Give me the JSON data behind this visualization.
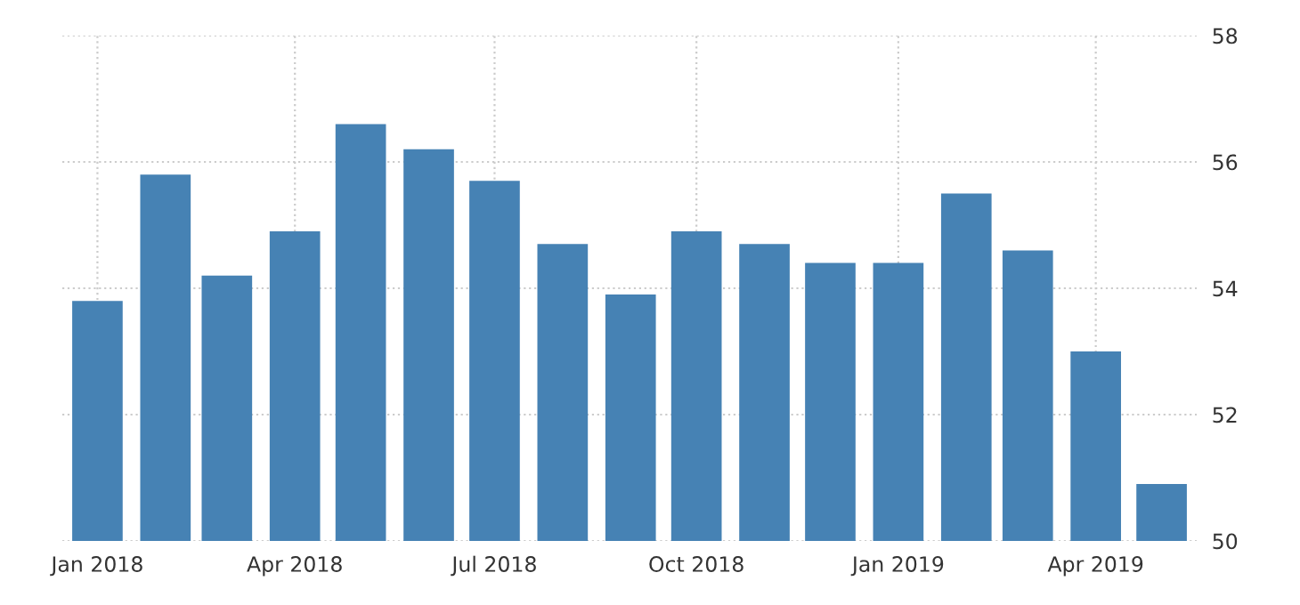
{
  "chart_data": {
    "type": "bar",
    "color": "#4682b4",
    "x": [
      "2018-01",
      "2018-02",
      "2018-03",
      "2018-04",
      "2018-05",
      "2018-06",
      "2018-07",
      "2018-08",
      "2018-09",
      "2018-10",
      "2018-11",
      "2018-12",
      "2019-01",
      "2019-02",
      "2019-03",
      "2019-04",
      "2019-05"
    ],
    "values": [
      53.8,
      55.8,
      54.2,
      54.9,
      56.6,
      56.2,
      55.7,
      54.7,
      53.9,
      54.9,
      54.7,
      54.4,
      54.4,
      55.5,
      54.6,
      53.0,
      50.9
    ],
    "xlim": [
      "2017-12-16",
      "2019-05-17"
    ],
    "xticks": [
      {
        "value": "2018-01",
        "label": "Jan 2018"
      },
      {
        "value": "2018-04",
        "label": "Apr 2018"
      },
      {
        "value": "2018-07",
        "label": "Jul 2018"
      },
      {
        "value": "2018-10",
        "label": "Oct 2018"
      },
      {
        "value": "2019-01",
        "label": "Jan 2019"
      },
      {
        "value": "2019-04",
        "label": "Apr 2019"
      }
    ],
    "ylim": [
      50,
      58
    ],
    "yticks": [
      50,
      52,
      54,
      56,
      58
    ],
    "grid": true
  }
}
